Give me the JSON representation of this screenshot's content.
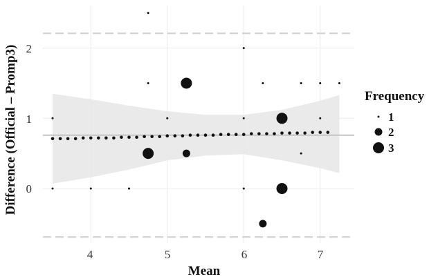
{
  "chart_data": {
    "type": "scatter",
    "title": "",
    "xlabel": "Mean",
    "ylabel": "Difference (Official – Promp3)",
    "xlim": [
      3.5,
      7.3
    ],
    "ylim": [
      -0.72,
      2.55
    ],
    "x_ticks": [
      "4",
      "5",
      "6",
      "7"
    ],
    "y_ticks": [
      "0",
      "1",
      "2"
    ],
    "grid": true,
    "legend": {
      "title": "Frequency",
      "position": "right",
      "items": [
        "1",
        "2",
        "3"
      ]
    },
    "mean_difference": 0.76,
    "limits_of_agreement": [
      -0.69,
      2.21
    ],
    "trend_line": {
      "x": [
        3.5,
        3.6,
        3.7,
        3.8,
        3.9,
        4.0,
        4.1,
        4.2,
        4.3,
        4.4,
        4.5,
        4.6,
        4.7,
        4.8,
        4.9,
        5.0,
        5.1,
        5.2,
        5.3,
        5.4,
        5.5,
        5.6,
        5.7,
        5.8,
        5.9,
        6.0,
        6.1,
        6.2,
        6.3,
        6.4,
        6.5,
        6.6,
        6.7,
        6.8,
        6.9,
        7.0,
        7.1
      ],
      "y": [
        0.71,
        0.71,
        0.71,
        0.71,
        0.72,
        0.72,
        0.72,
        0.72,
        0.72,
        0.73,
        0.73,
        0.73,
        0.74,
        0.74,
        0.74,
        0.75,
        0.75,
        0.75,
        0.76,
        0.76,
        0.76,
        0.76,
        0.77,
        0.77,
        0.77,
        0.77,
        0.78,
        0.78,
        0.78,
        0.78,
        0.79,
        0.79,
        0.79,
        0.79,
        0.8,
        0.8,
        0.8
      ]
    },
    "confidence_band": {
      "x": [
        3.5,
        4.0,
        4.5,
        5.0,
        5.5,
        6.0,
        6.5,
        7.0,
        7.25
      ],
      "upper": [
        1.35,
        1.27,
        1.18,
        1.1,
        1.05,
        1.05,
        1.12,
        1.25,
        1.33
      ],
      "lower": [
        0.07,
        0.16,
        0.27,
        0.4,
        0.47,
        0.49,
        0.4,
        0.29,
        0.22
      ]
    },
    "points": [
      {
        "x": 3.5,
        "y": 1.0,
        "frequency": 1
      },
      {
        "x": 3.5,
        "y": 0.0,
        "frequency": 1
      },
      {
        "x": 4.0,
        "y": 0.0,
        "frequency": 1
      },
      {
        "x": 4.5,
        "y": 0.0,
        "frequency": 1
      },
      {
        "x": 4.75,
        "y": 2.5,
        "frequency": 1
      },
      {
        "x": 4.75,
        "y": 1.5,
        "frequency": 1
      },
      {
        "x": 4.75,
        "y": 0.5,
        "frequency": 3
      },
      {
        "x": 5.0,
        "y": 1.0,
        "frequency": 1
      },
      {
        "x": 5.25,
        "y": 1.5,
        "frequency": 3
      },
      {
        "x": 5.25,
        "y": 0.5,
        "frequency": 2
      },
      {
        "x": 6.0,
        "y": 2.0,
        "frequency": 1
      },
      {
        "x": 6.0,
        "y": 1.0,
        "frequency": 1
      },
      {
        "x": 6.0,
        "y": 0.0,
        "frequency": 1
      },
      {
        "x": 6.25,
        "y": 1.5,
        "frequency": 1
      },
      {
        "x": 6.25,
        "y": -0.5,
        "frequency": 2
      },
      {
        "x": 6.5,
        "y": 1.0,
        "frequency": 3
      },
      {
        "x": 6.5,
        "y": 0.0,
        "frequency": 3
      },
      {
        "x": 6.75,
        "y": 1.5,
        "frequency": 1
      },
      {
        "x": 6.75,
        "y": 0.5,
        "frequency": 1
      },
      {
        "x": 7.0,
        "y": 1.5,
        "frequency": 1
      },
      {
        "x": 7.0,
        "y": 1.0,
        "frequency": 1
      },
      {
        "x": 7.25,
        "y": 1.5,
        "frequency": 1
      }
    ]
  }
}
